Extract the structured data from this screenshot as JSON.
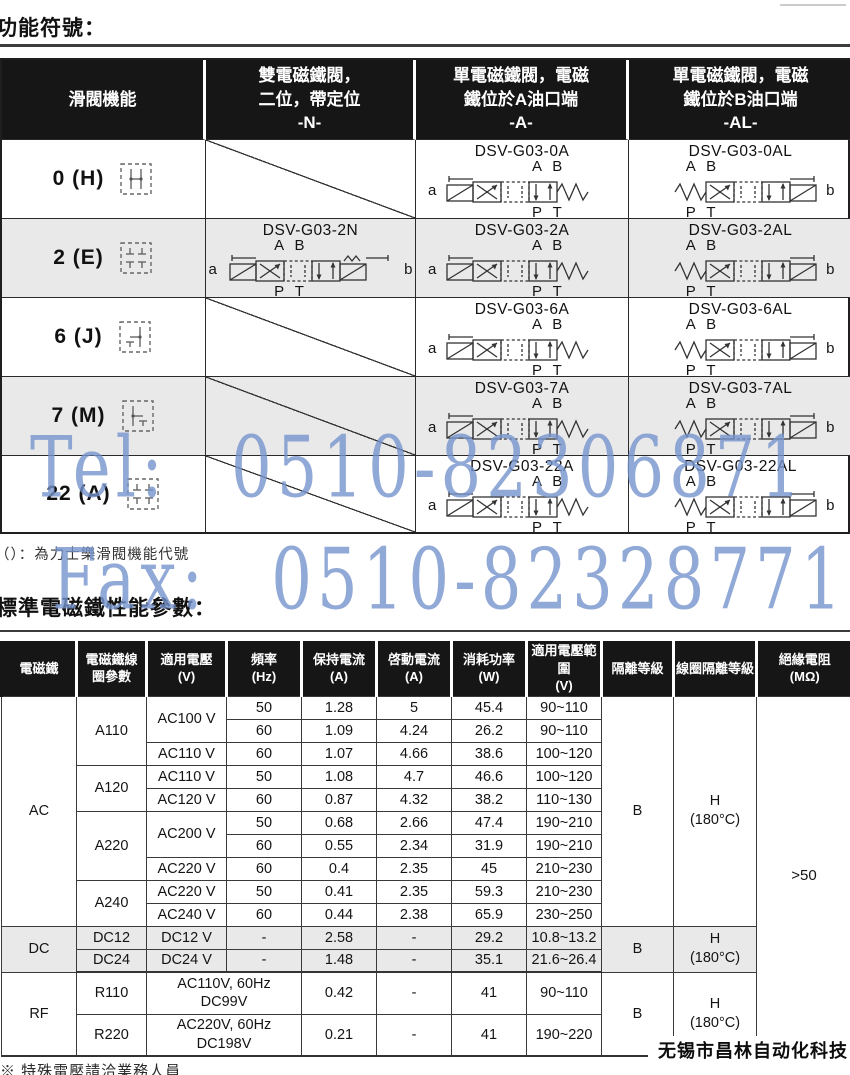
{
  "page": {
    "heading1": "功能符號：",
    "heading2": "標準電磁鐵性能參數：",
    "note1": "（）：為力士樂滑閥機能代號",
    "footnote": "※ 特殊電壓請洽業務人員",
    "brand": "无锡市昌林自动化科技",
    "watermark": {
      "tel": "Tel: 0510-82306871",
      "fax": "Fax: 0510-82328771",
      "color": "#7694cc"
    }
  },
  "sym_table": {
    "col_headers": [
      "滑閥機能",
      "雙電磁鐵閥，\n二位，帶定位\n-N-",
      "單電磁鐵閥，電磁\n鐵位於A油口端\n-A-",
      "單電磁鐵閥，電磁\n鐵位於B油口端\n-AL-"
    ],
    "ports": {
      "ab": "A B",
      "pt": "P T",
      "a": "a",
      "b": "b"
    },
    "rows": [
      {
        "label": "0 (H)",
        "codes": {
          "n": "",
          "a": "DSV-G03-0A",
          "al": "DSV-G03-0AL"
        }
      },
      {
        "label": "2 (E)",
        "codes": {
          "n": "DSV-G03-2N",
          "a": "DSV-G03-2A",
          "al": "DSV-G03-2AL"
        }
      },
      {
        "label": "6 (J)",
        "codes": {
          "n": "",
          "a": "DSV-G03-6A",
          "al": "DSV-G03-6AL"
        }
      },
      {
        "label": "7 (M)",
        "codes": {
          "n": "",
          "a": "DSV-G03-7A",
          "al": "DSV-G03-7AL"
        }
      },
      {
        "label": "22 (A)",
        "codes": {
          "n": "",
          "a": "DSV-G03-22A",
          "al": "DSV-G03-22AL"
        }
      }
    ]
  },
  "sol_table": {
    "headers": [
      "電磁鐵",
      "電磁鐵線\n圈參數",
      "適用電壓\n(V)",
      "頻率\n(Hz)",
      "保持電流\n(A)",
      "啓動電流\n(A)",
      "消耗功率\n(W)",
      "適用電壓範圍\n(V)",
      "隔離等級",
      "線圈隔離等級",
      "絕緣電阻\n(MΩ)"
    ],
    "groups": {
      "ac": "AC",
      "dc": "DC",
      "rf": "RF"
    },
    "coils": {
      "a110": "A110",
      "a120": "A120",
      "a220": "A220",
      "a240": "A240",
      "dc12": "DC12",
      "dc24": "DC24",
      "r110": "R110",
      "r220": "R220"
    },
    "volts": {
      "ac100": "AC100 V",
      "ac110": "AC110 V",
      "ac110b": "AC110 V",
      "ac120": "AC120 V",
      "ac200": "AC200 V",
      "ac220": "AC220 V",
      "ac220b": "AC220 V",
      "ac240": "AC240 V",
      "dc12": "DC12 V",
      "dc24": "DC24 V",
      "r110": "AC110V, 60Hz\nDC99V",
      "r220": "AC220V, 60Hz\nDC198V"
    },
    "ins_class": "B",
    "coil_class": "H\n(180°C)",
    "resistance": ">50",
    "rows": [
      [
        "50",
        "1.28",
        "5",
        "45.4",
        "90~110"
      ],
      [
        "60",
        "1.09",
        "4.24",
        "26.2",
        "90~110"
      ],
      [
        "60",
        "1.07",
        "4.66",
        "38.6",
        "100~120"
      ],
      [
        "50",
        "1.08",
        "4.7",
        "46.6",
        "100~120"
      ],
      [
        "60",
        "0.87",
        "4.32",
        "38.2",
        "110~130"
      ],
      [
        "50",
        "0.68",
        "2.66",
        "47.4",
        "190~210"
      ],
      [
        "60",
        "0.55",
        "2.34",
        "31.9",
        "190~210"
      ],
      [
        "60",
        "0.4",
        "2.35",
        "45",
        "210~230"
      ],
      [
        "50",
        "0.41",
        "2.35",
        "59.3",
        "210~230"
      ],
      [
        "60",
        "0.44",
        "2.38",
        "65.9",
        "230~250"
      ],
      [
        "-",
        "2.58",
        "-",
        "29.2",
        "10.8~13.2"
      ],
      [
        "-",
        "1.48",
        "-",
        "35.1",
        "21.6~26.4"
      ],
      [
        "0.42",
        "-",
        "41",
        "90~110"
      ],
      [
        "0.21",
        "-",
        "41",
        "190~220"
      ]
    ]
  }
}
